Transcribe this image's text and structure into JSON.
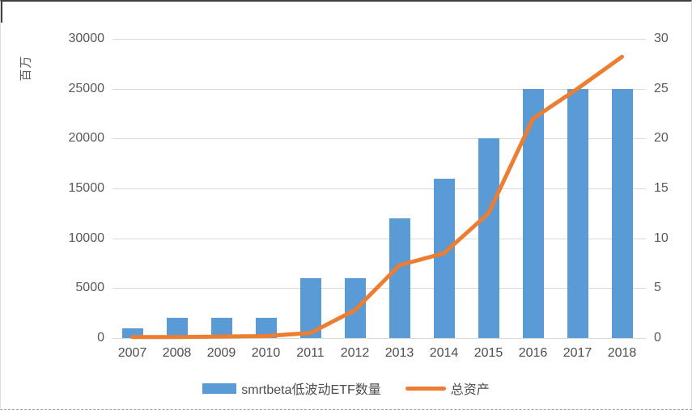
{
  "chart_data": {
    "type": "combo",
    "categories": [
      "2007",
      "2008",
      "2009",
      "2010",
      "2011",
      "2012",
      "2013",
      "2014",
      "2015",
      "2016",
      "2017",
      "2018"
    ],
    "series": [
      {
        "name": "smrtbeta低波动ETF数量",
        "type": "bar",
        "axis": "right",
        "color": "#5b9bd5",
        "values": [
          1,
          2,
          2,
          2,
          6,
          6,
          12,
          16,
          20,
          25,
          25,
          25
        ]
      },
      {
        "name": "总资产",
        "type": "line",
        "axis": "left",
        "color": "#ed7d31",
        "values": [
          100,
          100,
          150,
          200,
          500,
          2800,
          7300,
          8500,
          12500,
          22000,
          25000,
          28200
        ]
      }
    ],
    "left_axis": {
      "title": "百万",
      "min": 0,
      "max": 30000,
      "step": 5000
    },
    "right_axis": {
      "min": 0,
      "max": 30,
      "step": 5
    },
    "grid": "horizontal-only",
    "legend_position": "bottom",
    "colors": {
      "bar": "#5b9bd5",
      "line": "#ed7d31",
      "grid": "#d9d9d9",
      "text": "#595959"
    }
  }
}
